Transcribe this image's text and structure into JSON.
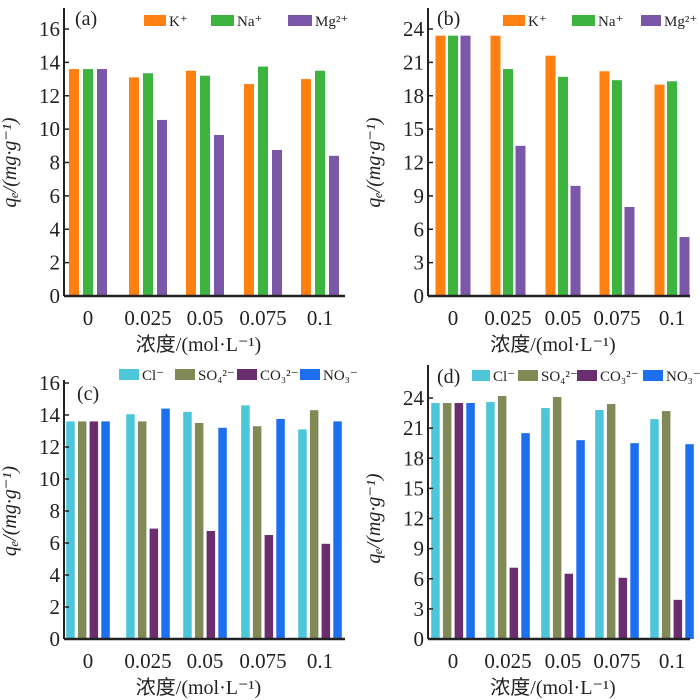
{
  "chart_data": [
    {
      "type": "bar",
      "panel_label": "(a)",
      "categories": [
        "0",
        "0.025",
        "0.05",
        "0.075",
        "0.1"
      ],
      "xlabel": "浓度/(mol·L⁻¹)",
      "ylabel": "qₑ/(mg·g⁻¹)",
      "ylim": [
        0,
        17.2
      ],
      "yticks": [
        "0",
        "2",
        "4",
        "6",
        "8",
        "10",
        "12",
        "14",
        "16"
      ],
      "legend_position": "top",
      "grid": false,
      "series": [
        {
          "name": "K⁺",
          "color": "#FF8010",
          "values": [
            13.6,
            13.1,
            13.5,
            12.7,
            13.0
          ]
        },
        {
          "name": "Na⁺",
          "color": "#3DB43F",
          "values": [
            13.6,
            13.35,
            13.2,
            13.75,
            13.5
          ]
        },
        {
          "name": "Mg²⁺",
          "color": "#7B57AA",
          "values": [
            13.6,
            10.55,
            9.65,
            8.75,
            8.4
          ]
        }
      ]
    },
    {
      "type": "bar",
      "panel_label": "(b)",
      "categories": [
        "0",
        "0.025",
        "0.05",
        "0.075",
        "0.1"
      ],
      "xlabel": "浓度/(mol·L⁻¹)",
      "ylabel": "qₑ/(mg·g⁻¹)",
      "ylim": [
        0,
        25.8
      ],
      "yticks": [
        "0",
        "3",
        "6",
        "9",
        "12",
        "15",
        "18",
        "21",
        "24"
      ],
      "legend_position": "top",
      "grid": false,
      "series": [
        {
          "name": "K⁺",
          "color": "#FF8010",
          "values": [
            23.4,
            23.4,
            21.6,
            20.2,
            19.0
          ]
        },
        {
          "name": "Na⁺",
          "color": "#3DB43F",
          "values": [
            23.4,
            20.4,
            19.7,
            19.4,
            19.3
          ]
        },
        {
          "name": "Mg²⁺",
          "color": "#7B57AA",
          "values": [
            23.4,
            13.5,
            9.9,
            8.0,
            5.3
          ]
        }
      ]
    },
    {
      "type": "bar",
      "panel_label": "(c)",
      "categories": [
        "0",
        "0.025",
        "0.05",
        "0.075",
        "0.1"
      ],
      "xlabel": "浓度/(mol·L⁻¹)",
      "ylabel": "qₑ/(mg·g⁻¹)",
      "ylim": [
        0,
        16.4
      ],
      "yticks": [
        "0",
        "2",
        "4",
        "6",
        "8",
        "10",
        "12",
        "14",
        "16"
      ],
      "legend_position": "top",
      "grid": false,
      "series": [
        {
          "name": "Cl⁻",
          "color": "#4CC6D8",
          "values": [
            13.6,
            14.05,
            14.2,
            14.6,
            13.1
          ]
        },
        {
          "name": "SO₄²⁻",
          "color": "#818A57",
          "values": [
            13.6,
            13.6,
            13.5,
            13.3,
            14.3
          ]
        },
        {
          "name": "CO₃²⁻",
          "color": "#6A2D6E",
          "values": [
            13.6,
            6.9,
            6.75,
            6.5,
            5.95
          ]
        },
        {
          "name": "NO₃⁻",
          "color": "#1E6FF0",
          "values": [
            13.6,
            14.4,
            13.2,
            13.75,
            13.6
          ]
        }
      ]
    },
    {
      "type": "bar",
      "panel_label": "(d)",
      "categories": [
        "0",
        "0.025",
        "0.05",
        "0.075",
        "0.1"
      ],
      "xlabel": "浓度/(mol·L⁻¹)",
      "ylabel": "qₑ/(mg·g⁻¹)",
      "ylim": [
        0,
        26.5
      ],
      "yticks": [
        "0",
        "3",
        "6",
        "9",
        "12",
        "15",
        "18",
        "21",
        "24"
      ],
      "legend_position": "top",
      "grid": false,
      "series": [
        {
          "name": "Cl⁻",
          "color": "#4CC6D8",
          "values": [
            23.5,
            23.6,
            23.0,
            22.8,
            21.9
          ]
        },
        {
          "name": "SO₄²⁻",
          "color": "#818A57",
          "values": [
            23.5,
            24.2,
            24.1,
            23.4,
            22.7
          ]
        },
        {
          "name": "CO₃²⁻",
          "color": "#6A2D6E",
          "values": [
            23.5,
            7.1,
            6.5,
            6.1,
            3.9
          ]
        },
        {
          "name": "NO₃⁻",
          "color": "#1E6FF0",
          "values": [
            23.5,
            20.5,
            19.8,
            19.5,
            19.4
          ]
        }
      ]
    }
  ]
}
